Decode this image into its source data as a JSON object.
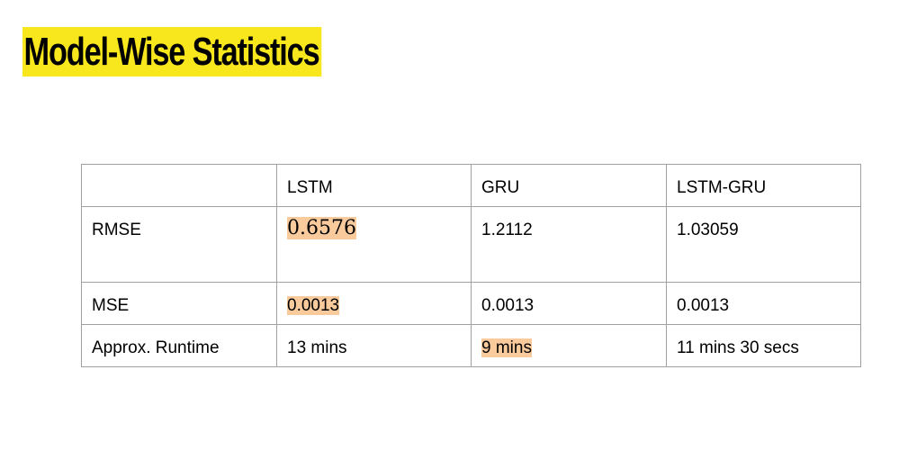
{
  "title": "Model-Wise Statistics",
  "table": {
    "headers": [
      "",
      "LSTM",
      "GRU",
      "LSTM-GRU"
    ],
    "rows": [
      {
        "label": "RMSE",
        "values": [
          "0.6576",
          "1.2112",
          "1.03059"
        ]
      },
      {
        "label": "MSE",
        "values": [
          "0.0013",
          "0.0013",
          "0.0013"
        ]
      },
      {
        "label": "Approx. Runtime",
        "values": [
          "13 mins",
          "9 mins",
          "11 mins 30 secs"
        ]
      }
    ]
  },
  "colors": {
    "title_highlight": "#f8e71c",
    "cell_highlight": "#f9cb9c",
    "border": "#a0a0a0"
  }
}
